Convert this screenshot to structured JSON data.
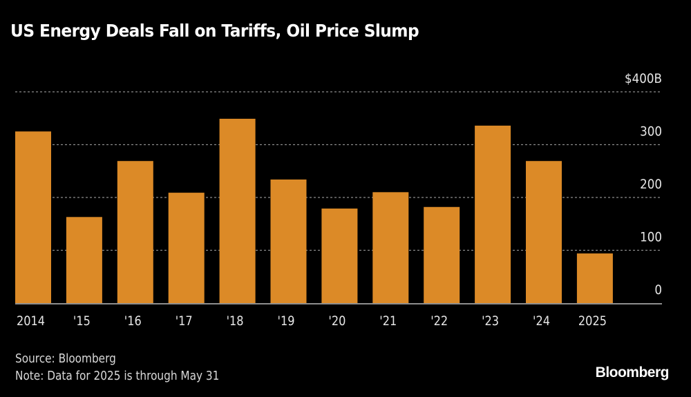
{
  "title": "US Energy Deals Fall on Tariffs, Oil Price Slump",
  "source": "Source: Bloomberg",
  "note": "Note: Data for 2025 is through May 31",
  "logo": "Bloomberg",
  "colors": {
    "bar": "#dc8a27",
    "grid": "#8c8c8c",
    "axis": "#bdbdbd",
    "background": "#000000",
    "text": "#ffffff"
  },
  "chart_data": {
    "type": "bar",
    "title": "US Energy Deals Fall on Tariffs, Oil Price Slump",
    "xlabel": "",
    "ylabel": "",
    "categories": [
      "2014",
      "'15",
      "'16",
      "'17",
      "'18",
      "'19",
      "'20",
      "'21",
      "'22",
      "'23",
      "'24",
      "2025"
    ],
    "values": [
      325,
      163,
      269,
      209,
      349,
      234,
      179,
      210,
      182,
      336,
      269,
      94
    ],
    "unit": "billions USD",
    "ylim": [
      0,
      400
    ],
    "yticks": [
      0,
      100,
      200,
      300,
      400
    ],
    "ytick_labels": [
      "0",
      "100",
      "200",
      "300",
      "$400B"
    ],
    "y_axis_position": "right",
    "grid": true,
    "legend": "none"
  }
}
